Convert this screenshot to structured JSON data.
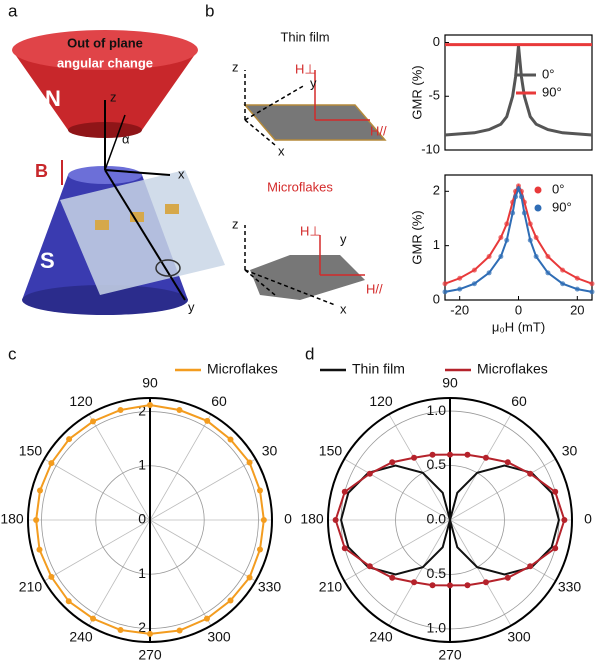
{
  "figure": {
    "panel_labels": [
      "a",
      "b",
      "c",
      "d"
    ],
    "magnet_text": [
      "Out of plane",
      "angular change"
    ],
    "north": "N",
    "south": "S",
    "field": "B",
    "axes_a": {
      "z": "z",
      "x": "x",
      "y": "y",
      "angle": "α"
    },
    "thin_film": "Thin film",
    "microflakes": "Microflakes",
    "axes_b": {
      "z": "z",
      "y": "y",
      "x": "x",
      "h_perp": "H⊥",
      "h_par": "H//"
    }
  },
  "chart_data": [
    {
      "type": "line",
      "ylabel": "GMR (%)",
      "x": [
        -25,
        -20,
        -15,
        -10,
        -6,
        -4,
        -2,
        -1,
        0,
        1,
        2,
        4,
        6,
        10,
        15,
        20,
        25
      ],
      "xlim": [
        -25,
        25
      ],
      "ylim": [
        -10,
        0.7
      ],
      "yticks": [
        -10,
        -5,
        0
      ],
      "legend": "right",
      "series": [
        {
          "name": "0°",
          "color": "#555555",
          "values": [
            -8.6,
            -8.5,
            -8.4,
            -8.1,
            -7.6,
            -6.9,
            -5.0,
            -3.2,
            -0.3,
            -3.2,
            -5.0,
            -6.9,
            -7.6,
            -8.1,
            -8.4,
            -8.5,
            -8.6
          ]
        },
        {
          "name": "90°",
          "color": "#e8393a",
          "values": [
            -0.2,
            -0.2,
            -0.2,
            -0.2,
            -0.2,
            -0.2,
            -0.2,
            -0.2,
            -0.2,
            -0.2,
            -0.2,
            -0.2,
            -0.2,
            -0.2,
            -0.2,
            -0.2,
            -0.2
          ]
        }
      ]
    },
    {
      "type": "line",
      "xlabel": "μ₀H (mT)",
      "ylabel": "GMR (%)",
      "x": [
        -25,
        -20,
        -15,
        -10,
        -6,
        -4,
        -2,
        -1,
        0,
        1,
        2,
        4,
        6,
        10,
        15,
        20,
        25
      ],
      "xlim": [
        -25,
        25
      ],
      "ylim": [
        0,
        2.3
      ],
      "yticks": [
        0,
        1,
        2
      ],
      "xticks": [
        -20,
        0,
        20
      ],
      "legend": "upper right",
      "markers": true,
      "series": [
        {
          "name": "0°",
          "color": "#e8393a",
          "values": [
            0.3,
            0.4,
            0.55,
            0.8,
            1.15,
            1.4,
            1.8,
            2.0,
            2.1,
            2.0,
            1.8,
            1.4,
            1.15,
            0.8,
            0.55,
            0.4,
            0.3
          ]
        },
        {
          "name": "90°",
          "color": "#2f6db5",
          "values": [
            0.15,
            0.2,
            0.3,
            0.5,
            0.8,
            1.1,
            1.6,
            1.9,
            2.05,
            1.9,
            1.6,
            1.1,
            0.8,
            0.5,
            0.3,
            0.2,
            0.15
          ]
        }
      ]
    },
    {
      "type": "polar",
      "theta": [
        0,
        15,
        30,
        45,
        60,
        75,
        90,
        105,
        120,
        135,
        150,
        165,
        180,
        195,
        210,
        225,
        240,
        255,
        270,
        285,
        300,
        315,
        330,
        345
      ],
      "rlim": [
        0,
        2.25
      ],
      "rticks": [
        0,
        1,
        2
      ],
      "angle_ticks": [
        0,
        30,
        60,
        90,
        120,
        150,
        180,
        210,
        240,
        270,
        300,
        330
      ],
      "series": [
        {
          "name": "Microflakes",
          "color": "#f39c1f",
          "values": [
            2.1,
            2.1,
            2.12,
            2.1,
            2.11,
            2.1,
            2.12,
            2.1,
            2.1,
            2.11,
            2.1,
            2.1,
            2.1,
            2.11,
            2.1,
            2.12,
            2.1,
            2.1,
            2.1,
            2.11,
            2.1,
            2.1,
            2.12,
            2.1
          ],
          "markers": true
        }
      ]
    },
    {
      "type": "polar",
      "theta": [
        0,
        15,
        30,
        45,
        60,
        75,
        90,
        105,
        120,
        135,
        150,
        165,
        180,
        195,
        210,
        225,
        240,
        255,
        270,
        285,
        300,
        315,
        330,
        345
      ],
      "rlim": [
        0,
        1.12
      ],
      "rticks": [
        {
          "value": 0,
          "label": "0.0"
        },
        0.5,
        {
          "value": 1,
          "label": "1.0"
        }
      ],
      "angle_ticks": [
        0,
        30,
        60,
        90,
        120,
        150,
        180,
        210,
        240,
        270,
        300,
        330
      ],
      "series": [
        {
          "name": "Thin film",
          "color": "#111111",
          "values": [
            1.0,
            0.966,
            0.866,
            0.707,
            0.5,
            0.259,
            0,
            0.259,
            0.5,
            0.707,
            0.866,
            0.966,
            1.0,
            0.966,
            0.866,
            0.707,
            0.5,
            0.259,
            0,
            0.259,
            0.5,
            0.707,
            0.866,
            0.966
          ]
        },
        {
          "name": "Microflakes",
          "color": "#b5222b",
          "values": [
            1.05,
            1.0,
            0.85,
            0.75,
            0.66,
            0.62,
            0.6,
            0.62,
            0.66,
            0.75,
            0.85,
            1.0,
            1.05,
            1.0,
            0.85,
            0.75,
            0.66,
            0.62,
            0.6,
            0.62,
            0.66,
            0.75,
            0.85,
            1.0
          ],
          "markers": true
        }
      ]
    }
  ]
}
